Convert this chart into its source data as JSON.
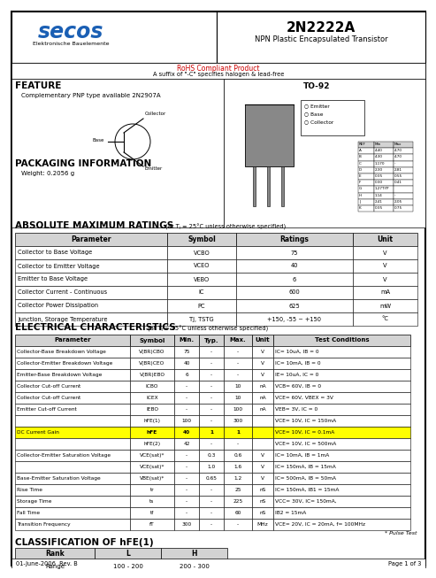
{
  "title_part": "2N2222A",
  "title_sub": "NPN Plastic Encapsulated Transistor",
  "company": "secos",
  "company_sub": "Elektronische Bauelemente",
  "rohs_text": "RoHS Compliant Product",
  "rohs_sub": "A suffix of \"-C\" specifies halogen & lead-free",
  "feature_title": "FEATURE",
  "feature_text": "Complementary PNP type available 2N2907A",
  "package_title": "PACKAGING INFORMATION",
  "package_text": "Weight: 0.2056 g",
  "package_name": "TO-92",
  "abs_title": "ABSOLUTE MAXIMUM RATINGS",
  "abs_subtitle": "(at Tⱼ = 25°C unless otherwise specified)",
  "abs_headers": [
    "Parameter",
    "Symbol",
    "Ratings",
    "Unit"
  ],
  "abs_rows": [
    [
      "Collector to Base Voltage",
      "VCBO",
      "75",
      "V"
    ],
    [
      "Collector to Emitter Voltage",
      "VCEO",
      "40",
      "V"
    ],
    [
      "Emitter to Base Voltage",
      "VEBO",
      "6",
      "V"
    ],
    [
      "Collector Current - Continuous",
      "IC",
      "600",
      "mA"
    ],
    [
      "Collector Power Dissipation",
      "PC",
      "625",
      "mW"
    ],
    [
      "Junction, Storage Temperature",
      "TJ, TSTG",
      "+150, -55 ~ +150",
      "°C"
    ]
  ],
  "elec_title": "ELECTRICAL CHARACTERISTICS",
  "elec_subtitle": "(at Tⱼ = 25°C unless otherwise specified)",
  "elec_headers": [
    "Parameter",
    "Symbol",
    "Min.",
    "Typ.",
    "Max.",
    "Unit",
    "Test Conditions"
  ],
  "elec_rows": [
    [
      "Collector-Base Breakdown Voltage",
      "V(BR)CBO",
      "75",
      "-",
      "-",
      "V",
      "IC= 10uA, IB = 0"
    ],
    [
      "Collector-Emitter Breakdown Voltage",
      "V(BR)CEO",
      "40",
      "-",
      "-",
      "V",
      "IC= 10mA, IB = 0"
    ],
    [
      "Emitter-Base Breakdown Voltage",
      "V(BR)EBO",
      "6",
      "-",
      "-",
      "V",
      "IE= 10uA, IC = 0"
    ],
    [
      "Collector Cut-off Current",
      "ICBO",
      "-",
      "-",
      "10",
      "nA",
      "VCB= 60V, IB = 0"
    ],
    [
      "Collector Cut-off Current",
      "ICEX",
      "-",
      "-",
      "10",
      "nA",
      "VCE= 60V, VBEX = 3V"
    ],
    [
      "Emitter Cut-off Current",
      "IEBO",
      "-",
      "-",
      "100",
      "nA",
      "VEB= 3V, IC = 0"
    ],
    [
      "",
      "hFE(1)",
      "100",
      "-",
      "300",
      "",
      "VCE= 10V, IC = 150mA"
    ],
    [
      "DC Current Gain",
      "hFE",
      "40",
      "1",
      "1",
      "",
      "VCE= 10V, IC = 0.1mA"
    ],
    [
      "",
      "hFE(2)",
      "42",
      "-",
      "-",
      "",
      "VCE= 10V, IC = 500mA"
    ],
    [
      "Collector-Emitter Saturation Voltage",
      "VCE(sat)*",
      "-",
      "0.3",
      "0.6",
      "V",
      "IC= 10mA, IB = 1mA"
    ],
    [
      "",
      "VCE(sat)*",
      "-",
      "1.0",
      "1.6",
      "V",
      "IC= 150mA, IB = 15mA"
    ],
    [
      "Base-Emitter Saturation Voltage",
      "VBE(sat)*",
      "-",
      "0.65",
      "1.2",
      "V",
      "IC= 500mA, IB = 50mA"
    ],
    [
      "Rise Time",
      "tr",
      "-",
      "-",
      "25",
      "nS",
      "IC= 150mA, IB1 = 15mA"
    ],
    [
      "Storage Time",
      "ts",
      "-",
      "-",
      "225",
      "nS",
      "VCC= 30V, IC= 150mA,"
    ],
    [
      "Fall Time",
      "tf",
      "-",
      "-",
      "60",
      "nS",
      "IB2 = 15mA"
    ],
    [
      "Transition Frequency",
      "fT",
      "300",
      "-",
      "-",
      "MHz",
      "VCE= 20V, IC = 20mA, f= 100MHz"
    ]
  ],
  "highlight_row": 7,
  "highlight_color": "#ffff00",
  "class_title": "CLASSIFICATION OF hFE(1)",
  "class_headers": [
    "Rank",
    "L",
    "H"
  ],
  "class_rows": [
    [
      "Range",
      "100 - 200",
      "200 - 300"
    ]
  ],
  "footer_left": "01-June-2006  Rev. B",
  "footer_right": "Page 1 of 3",
  "bg_color": "#ffffff",
  "border_color": "#000000",
  "header_bg": "#d3d3d3",
  "pulse_note": "* Pulse Test",
  "secos_color": "#1a5fb4",
  "rohs_color": "#cc0000"
}
